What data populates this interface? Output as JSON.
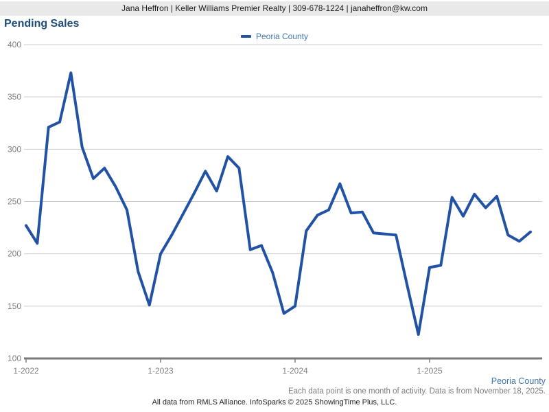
{
  "header": {
    "contact_line": "Jana Heffron | Keller Williams Premier Realty | 309-678-1224 | janaheffron@kw.com"
  },
  "title": "Pending Sales",
  "legend": {
    "label": "Peoria County"
  },
  "footer": {
    "series_label": "Peoria County",
    "note": "Each data point is one month of activity. Data is from November 18, 2025.",
    "credit": "All data from RMLS Alliance. InfoSparks © 2025 ShowingTime Plus, LLC."
  },
  "colors": {
    "line": "#2152a3",
    "title_text": "#1d4e7a",
    "legend_text": "#4274ad",
    "header_bg": "#e9e9e9",
    "grid_line": "#cccccc",
    "axis_line": "#7a7a7a",
    "tick_text": "#808080",
    "note_text": "#7c7c7c",
    "credit_text": "#222222"
  },
  "chart_data": {
    "type": "line",
    "title": "Pending Sales",
    "xlabel": "",
    "ylabel": "",
    "ylim": [
      100,
      400
    ],
    "y_ticks": [
      100,
      150,
      200,
      250,
      300,
      350,
      400
    ],
    "x_tick_labels": [
      "1-2022",
      "1-2023",
      "1-2024",
      "1-2025"
    ],
    "x_tick_month_interval": 12,
    "grid": "horizontal",
    "legend_position": "top-center",
    "categories": [
      "1-2022",
      "2-2022",
      "3-2022",
      "4-2022",
      "5-2022",
      "6-2022",
      "7-2022",
      "8-2022",
      "9-2022",
      "10-2022",
      "11-2022",
      "12-2022",
      "1-2023",
      "2-2023",
      "3-2023",
      "4-2023",
      "5-2023",
      "6-2023",
      "7-2023",
      "8-2023",
      "9-2023",
      "10-2023",
      "11-2023",
      "12-2023",
      "1-2024",
      "2-2024",
      "3-2024",
      "4-2024",
      "5-2024",
      "6-2024",
      "7-2024",
      "8-2024",
      "9-2024",
      "10-2024",
      "11-2024",
      "12-2024",
      "1-2025",
      "2-2025",
      "3-2025",
      "4-2025",
      "5-2025",
      "6-2025",
      "7-2025",
      "8-2025",
      "9-2025",
      "10-2025"
    ],
    "series": [
      {
        "name": "Peoria County",
        "color": "#2152a3",
        "values": [
          227,
          210,
          321,
          326,
          373,
          302,
          272,
          282,
          264,
          242,
          183,
          151,
          200,
          218,
          238,
          258,
          279,
          260,
          293,
          282,
          204,
          208,
          182,
          143,
          150,
          222,
          237,
          242,
          267,
          239,
          240,
          220,
          219,
          218,
          170,
          123,
          187,
          189,
          254,
          236,
          257,
          244,
          255,
          218,
          212,
          221
        ]
      }
    ]
  }
}
